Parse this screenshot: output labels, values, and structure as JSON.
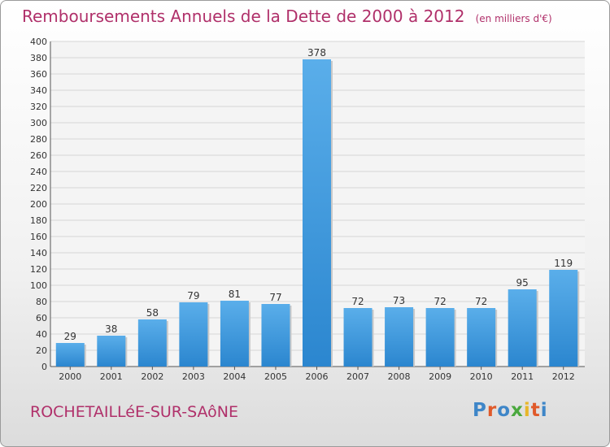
{
  "header": {
    "title": "Remboursements Annuels de la Dette de 2000 à 2012",
    "unit": "(en milliers d'€)"
  },
  "footer": {
    "commune": "ROCHETAILLéE-SUR-SAôNE",
    "logo": "Proxiti"
  },
  "colors": {
    "title": "#b0306a",
    "bar": "#3d9ae0",
    "grid": "#d6d6d6"
  },
  "chart_data": {
    "type": "bar",
    "title": "Remboursements Annuels de la Dette de 2000 à 2012",
    "xlabel": "",
    "ylabel": "",
    "categories": [
      "2000",
      "2001",
      "2002",
      "2003",
      "2004",
      "2005",
      "2006",
      "2007",
      "2008",
      "2009",
      "2010",
      "2011",
      "2012"
    ],
    "values": [
      29,
      38,
      58,
      79,
      81,
      77,
      378,
      72,
      73,
      72,
      72,
      95,
      119
    ],
    "ylim": [
      0,
      400
    ],
    "yticks": [
      0,
      20,
      40,
      60,
      80,
      100,
      120,
      140,
      160,
      180,
      200,
      220,
      240,
      260,
      280,
      300,
      320,
      340,
      360,
      380,
      400
    ],
    "grid": true,
    "data_labels": true
  }
}
